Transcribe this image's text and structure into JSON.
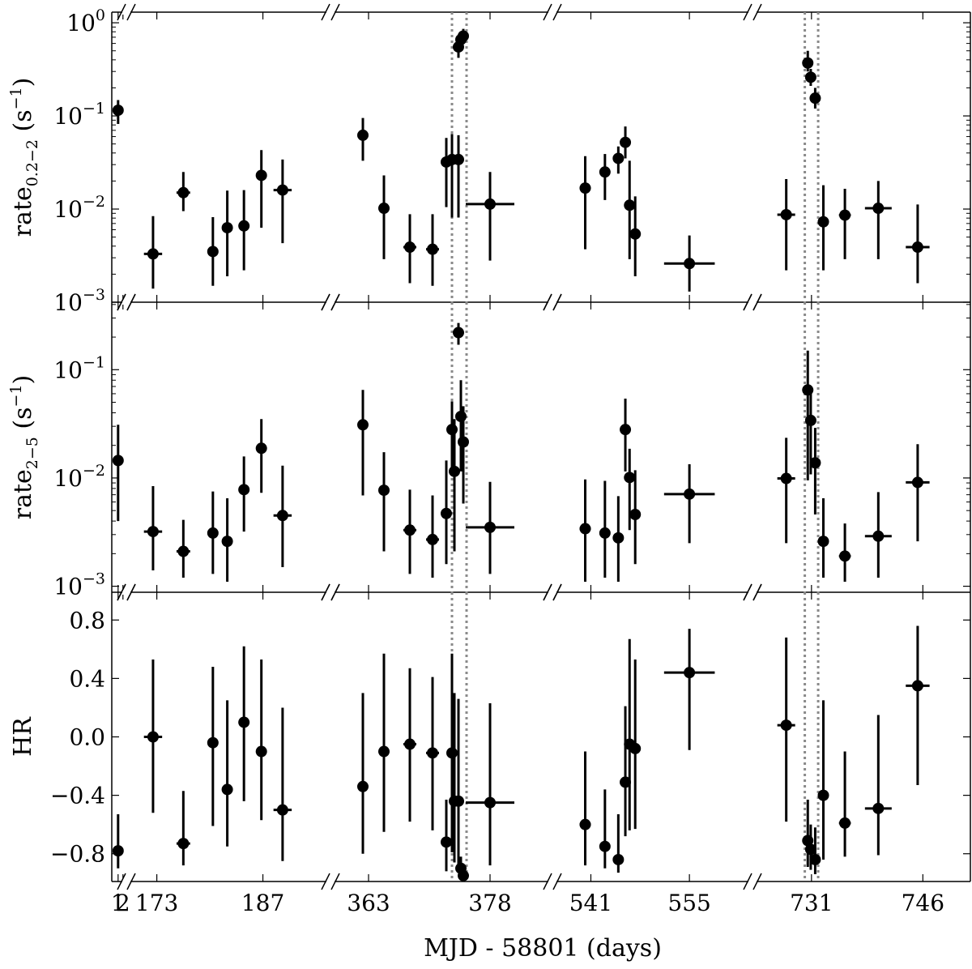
{
  "chart_data": {
    "type": "scatter",
    "title": "",
    "xlabel": "MJD - 58801 (days)",
    "x_segments": [
      {
        "range": [
          -0.3,
          2.2
        ],
        "ticks": [
          1,
          2
        ],
        "tick_labels": [
          "1",
          "2"
        ]
      },
      {
        "range": [
          169.3,
          195.6
        ],
        "ticks": [
          173,
          187
        ],
        "tick_labels": [
          "173",
          "187"
        ]
      },
      {
        "range": [
          358.6,
          385.3
        ],
        "ticks": [
          363,
          378
        ],
        "tick_labels": [
          "363",
          "378"
        ]
      },
      {
        "range": [
          536.0,
          563.5
        ],
        "ticks": [
          541,
          555
        ],
        "tick_labels": [
          "541",
          "555"
        ]
      },
      {
        "range": [
          723.6,
          752.4
        ],
        "ticks": [
          731,
          746
        ],
        "tick_labels": [
          "731",
          "746"
        ]
      }
    ],
    "vlines": [
      373.3,
      375.1,
      730.1,
      731.9
    ],
    "panels": [
      {
        "name": "soft-rate",
        "ylabel": "rate",
        "ylabel_sub": "0.2−2",
        "ylabel_unit": "(s",
        "ylabel_unit_sup": "−1",
        "ylabel_unit_end": ")",
        "scale": "log",
        "ylim": [
          0.001,
          1.3
        ],
        "yticks": [
          {
            "value": 0.001,
            "base": "10",
            "exp": "−3"
          },
          {
            "value": 0.01,
            "base": "10",
            "exp": "−2"
          },
          {
            "value": 0.1,
            "base": "10",
            "exp": "−1"
          },
          {
            "value": 1,
            "base": "10",
            "exp": "0"
          }
        ],
        "points": [
          {
            "x": 1.0,
            "y": 0.115,
            "xerr": 0,
            "ylo": 0.082,
            "yhi": 0.148
          },
          {
            "x": 172.5,
            "y": 0.0033,
            "xerr": 1.2,
            "ylo": 0.0014,
            "yhi": 0.0084
          },
          {
            "x": 176.5,
            "y": 0.015,
            "xerr": 0.9,
            "ylo": 0.0095,
            "yhi": 0.025
          },
          {
            "x": 180.4,
            "y": 0.0035,
            "xerr": 0.4,
            "ylo": 0.0015,
            "yhi": 0.0082
          },
          {
            "x": 182.3,
            "y": 0.0063,
            "xerr": 0.4,
            "ylo": 0.0019,
            "yhi": 0.0158
          },
          {
            "x": 184.5,
            "y": 0.0066,
            "xerr": 0.4,
            "ylo": 0.0022,
            "yhi": 0.016
          },
          {
            "x": 186.8,
            "y": 0.023,
            "xerr": 0,
            "ylo": 0.0063,
            "yhi": 0.043
          },
          {
            "x": 189.6,
            "y": 0.016,
            "xerr": 1.2,
            "ylo": 0.0043,
            "yhi": 0.034
          },
          {
            "x": 362.3,
            "y": 0.062,
            "xerr": 0.4,
            "ylo": 0.033,
            "yhi": 0.095
          },
          {
            "x": 364.9,
            "y": 0.0102,
            "xerr": 0.4,
            "ylo": 0.0029,
            "yhi": 0.023
          },
          {
            "x": 368.1,
            "y": 0.0039,
            "xerr": 0.8,
            "ylo": 0.0016,
            "yhi": 0.0088
          },
          {
            "x": 370.9,
            "y": 0.0037,
            "xerr": 0.8,
            "ylo": 0.0015,
            "yhi": 0.0088
          },
          {
            "x": 372.6,
            "y": 0.032,
            "xerr": 0,
            "ylo": 0.0105,
            "yhi": 0.058
          },
          {
            "x": 373.3,
            "y": 0.034,
            "xerr": 0,
            "ylo": 0.0081,
            "yhi": 0.064
          },
          {
            "x": 374.1,
            "y": 0.034,
            "xerr": 0,
            "ylo": 0.0081,
            "yhi": 0.062
          },
          {
            "x": 374.1,
            "y": 0.55,
            "xerr": 0,
            "ylo": 0.42,
            "yhi": 0.66
          },
          {
            "x": 374.4,
            "y": 0.66,
            "xerr": 0,
            "ylo": 0.54,
            "yhi": 0.8
          },
          {
            "x": 374.7,
            "y": 0.72,
            "xerr": 0,
            "ylo": 0.6,
            "yhi": 0.86
          },
          {
            "x": 378.0,
            "y": 0.0113,
            "xerr": 3.0,
            "ylo": 0.0028,
            "yhi": 0.025
          },
          {
            "x": 540.2,
            "y": 0.0168,
            "xerr": 0.8,
            "ylo": 0.0037,
            "yhi": 0.037
          },
          {
            "x": 543.0,
            "y": 0.025,
            "xerr": 0.4,
            "ylo": 0.0125,
            "yhi": 0.039
          },
          {
            "x": 544.9,
            "y": 0.035,
            "xerr": 0.4,
            "ylo": 0.024,
            "yhi": 0.047
          },
          {
            "x": 545.9,
            "y": 0.052,
            "xerr": 0.4,
            "ylo": 0.035,
            "yhi": 0.077
          },
          {
            "x": 546.5,
            "y": 0.011,
            "xerr": 0,
            "ylo": 0.0029,
            "yhi": 0.033
          },
          {
            "x": 547.3,
            "y": 0.0054,
            "xerr": 0.4,
            "ylo": 0.0019,
            "yhi": 0.0137
          },
          {
            "x": 555.0,
            "y": 0.0026,
            "xerr": 3.6,
            "ylo": 0.0013,
            "yhi": 0.0052
          },
          {
            "x": 727.6,
            "y": 0.0087,
            "xerr": 1.2,
            "ylo": 0.0022,
            "yhi": 0.021
          },
          {
            "x": 730.5,
            "y": 0.37,
            "xerr": 0,
            "ylo": 0.3,
            "yhi": 0.5
          },
          {
            "x": 730.9,
            "y": 0.26,
            "xerr": 0,
            "ylo": 0.21,
            "yhi": 0.32
          },
          {
            "x": 731.5,
            "y": 0.155,
            "xerr": 0,
            "ylo": 0.12,
            "yhi": 0.2
          },
          {
            "x": 732.6,
            "y": 0.0073,
            "xerr": 0.4,
            "ylo": 0.0022,
            "yhi": 0.018
          },
          {
            "x": 735.5,
            "y": 0.0086,
            "xerr": 0.8,
            "ylo": 0.0029,
            "yhi": 0.0165
          },
          {
            "x": 740.0,
            "y": 0.0102,
            "xerr": 1.8,
            "ylo": 0.0029,
            "yhi": 0.02
          },
          {
            "x": 745.3,
            "y": 0.0039,
            "xerr": 1.6,
            "ylo": 0.0016,
            "yhi": 0.0112
          }
        ]
      },
      {
        "name": "hard-rate",
        "ylabel": "rate",
        "ylabel_sub": "2−5",
        "ylabel_unit": "(s",
        "ylabel_unit_sup": "−1",
        "ylabel_unit_end": ")",
        "scale": "log",
        "ylim": [
          0.00088,
          0.42
        ],
        "yticks": [
          {
            "value": 0.001,
            "base": "10",
            "exp": "−3"
          },
          {
            "value": 0.01,
            "base": "10",
            "exp": "−2"
          },
          {
            "value": 0.1,
            "base": "10",
            "exp": "−1"
          }
        ],
        "points": [
          {
            "x": 1.0,
            "y": 0.0145,
            "xerr": 0,
            "ylo": 0.004,
            "yhi": 0.031
          },
          {
            "x": 172.5,
            "y": 0.0032,
            "xerr": 1.2,
            "ylo": 0.0014,
            "yhi": 0.0084
          },
          {
            "x": 176.5,
            "y": 0.0021,
            "xerr": 0.9,
            "ylo": 0.0012,
            "yhi": 0.0041
          },
          {
            "x": 180.4,
            "y": 0.0031,
            "xerr": 0.4,
            "ylo": 0.0013,
            "yhi": 0.0075
          },
          {
            "x": 182.3,
            "y": 0.0026,
            "xerr": 0.4,
            "ylo": 0.0011,
            "yhi": 0.0065
          },
          {
            "x": 184.5,
            "y": 0.0078,
            "xerr": 0.4,
            "ylo": 0.0032,
            "yhi": 0.0158
          },
          {
            "x": 186.8,
            "y": 0.0188,
            "xerr": 0,
            "ylo": 0.0073,
            "yhi": 0.035
          },
          {
            "x": 189.6,
            "y": 0.0045,
            "xerr": 1.2,
            "ylo": 0.0015,
            "yhi": 0.013
          },
          {
            "x": 362.3,
            "y": 0.031,
            "xerr": 0.4,
            "ylo": 0.0069,
            "yhi": 0.065
          },
          {
            "x": 364.9,
            "y": 0.0077,
            "xerr": 0.4,
            "ylo": 0.0021,
            "yhi": 0.0173
          },
          {
            "x": 368.1,
            "y": 0.0033,
            "xerr": 0.8,
            "ylo": 0.0013,
            "yhi": 0.0078
          },
          {
            "x": 370.9,
            "y": 0.0027,
            "xerr": 0.8,
            "ylo": 0.0012,
            "yhi": 0.0069
          },
          {
            "x": 372.6,
            "y": 0.0047,
            "xerr": 0,
            "ylo": 0.0016,
            "yhi": 0.0145
          },
          {
            "x": 373.3,
            "y": 0.028,
            "xerr": 0,
            "ylo": 0.0125,
            "yhi": 0.051
          },
          {
            "x": 373.6,
            "y": 0.0115,
            "xerr": 0,
            "ylo": 0.0021,
            "yhi": 0.035
          },
          {
            "x": 374.1,
            "y": 0.22,
            "xerr": 0,
            "ylo": 0.17,
            "yhi": 0.27
          },
          {
            "x": 374.4,
            "y": 0.037,
            "xerr": 0,
            "ylo": 0.0115,
            "yhi": 0.08
          },
          {
            "x": 374.7,
            "y": 0.0215,
            "xerr": 0,
            "ylo": 0.0058,
            "yhi": 0.046
          },
          {
            "x": 378.0,
            "y": 0.0035,
            "xerr": 3.0,
            "ylo": 0.0013,
            "yhi": 0.0092
          },
          {
            "x": 540.2,
            "y": 0.0034,
            "xerr": 0.8,
            "ylo": 0.0011,
            "yhi": 0.0097
          },
          {
            "x": 543.0,
            "y": 0.0031,
            "xerr": 0.4,
            "ylo": 0.0012,
            "yhi": 0.0094
          },
          {
            "x": 544.9,
            "y": 0.0028,
            "xerr": 0.4,
            "ylo": 0.0011,
            "yhi": 0.0068
          },
          {
            "x": 545.9,
            "y": 0.028,
            "xerr": 0,
            "ylo": 0.0115,
            "yhi": 0.054
          },
          {
            "x": 546.5,
            "y": 0.0101,
            "xerr": 0,
            "ylo": 0.0033,
            "yhi": 0.0186
          },
          {
            "x": 547.3,
            "y": 0.0046,
            "xerr": 0.4,
            "ylo": 0.0016,
            "yhi": 0.0118
          },
          {
            "x": 555.0,
            "y": 0.0071,
            "xerr": 3.6,
            "ylo": 0.0025,
            "yhi": 0.0134
          },
          {
            "x": 727.6,
            "y": 0.0099,
            "xerr": 1.2,
            "ylo": 0.0025,
            "yhi": 0.0235
          },
          {
            "x": 730.5,
            "y": 0.065,
            "xerr": 0,
            "ylo": 0.0095,
            "yhi": 0.15
          },
          {
            "x": 730.9,
            "y": 0.034,
            "xerr": 0,
            "ylo": 0.0108,
            "yhi": 0.065
          },
          {
            "x": 731.5,
            "y": 0.0138,
            "xerr": 0,
            "ylo": 0.0046,
            "yhi": 0.029
          },
          {
            "x": 732.6,
            "y": 0.0026,
            "xerr": 0.4,
            "ylo": 0.0012,
            "yhi": 0.0065
          },
          {
            "x": 735.5,
            "y": 0.0019,
            "xerr": 0.8,
            "ylo": 0.0011,
            "yhi": 0.0038
          },
          {
            "x": 740.0,
            "y": 0.0029,
            "xerr": 1.8,
            "ylo": 0.0012,
            "yhi": 0.0074
          },
          {
            "x": 745.3,
            "y": 0.0091,
            "xerr": 1.6,
            "ylo": 0.0026,
            "yhi": 0.0205
          }
        ]
      },
      {
        "name": "hardness-ratio",
        "ylabel": "HR",
        "ylabel_sub": "",
        "ylabel_unit": "",
        "ylabel_unit_sup": "",
        "ylabel_unit_end": "",
        "scale": "linear",
        "ylim": [
          -0.99,
          0.99
        ],
        "yticks": [
          {
            "value": -0.8,
            "label": "−0.8"
          },
          {
            "value": -0.4,
            "label": "−0.4"
          },
          {
            "value": 0.0,
            "label": "0.0"
          },
          {
            "value": 0.4,
            "label": "0.4"
          },
          {
            "value": 0.8,
            "label": "0.8"
          }
        ],
        "points": [
          {
            "x": 1.0,
            "y": -0.78,
            "xerr": 0,
            "ylo": -0.9,
            "yhi": -0.53
          },
          {
            "x": 172.5,
            "y": 0.0,
            "xerr": 1.2,
            "ylo": -0.52,
            "yhi": 0.53
          },
          {
            "x": 176.5,
            "y": -0.73,
            "xerr": 0.9,
            "ylo": -0.88,
            "yhi": -0.37
          },
          {
            "x": 180.4,
            "y": -0.04,
            "xerr": 0.4,
            "ylo": -0.61,
            "yhi": 0.48
          },
          {
            "x": 182.3,
            "y": -0.36,
            "xerr": 0.4,
            "ylo": -0.75,
            "yhi": 0.25
          },
          {
            "x": 184.5,
            "y": 0.1,
            "xerr": 0.4,
            "ylo": -0.44,
            "yhi": 0.62
          },
          {
            "x": 186.8,
            "y": -0.1,
            "xerr": 0,
            "ylo": -0.57,
            "yhi": 0.53
          },
          {
            "x": 189.6,
            "y": -0.5,
            "xerr": 1.2,
            "ylo": -0.85,
            "yhi": 0.2
          },
          {
            "x": 362.3,
            "y": -0.34,
            "xerr": 0.4,
            "ylo": -0.8,
            "yhi": 0.3
          },
          {
            "x": 364.9,
            "y": -0.1,
            "xerr": 0.4,
            "ylo": -0.65,
            "yhi": 0.57
          },
          {
            "x": 368.1,
            "y": -0.05,
            "xerr": 0.8,
            "ylo": -0.58,
            "yhi": 0.47
          },
          {
            "x": 370.9,
            "y": -0.11,
            "xerr": 0.8,
            "ylo": -0.64,
            "yhi": 0.41
          },
          {
            "x": 372.6,
            "y": -0.72,
            "xerr": 0,
            "ylo": -0.92,
            "yhi": -0.43
          },
          {
            "x": 373.3,
            "y": -0.11,
            "xerr": 0,
            "ylo": -0.79,
            "yhi": 0.57
          },
          {
            "x": 373.6,
            "y": -0.44,
            "xerr": 0,
            "ylo": -0.86,
            "yhi": 0.3
          },
          {
            "x": 374.1,
            "y": -0.44,
            "xerr": 0,
            "ylo": -0.9,
            "yhi": 0.26
          },
          {
            "x": 374.4,
            "y": -0.9,
            "xerr": 0,
            "ylo": -0.96,
            "yhi": -0.82
          },
          {
            "x": 374.7,
            "y": -0.95,
            "xerr": 0,
            "ylo": -0.99,
            "yhi": -0.9
          },
          {
            "x": 378.0,
            "y": -0.45,
            "xerr": 3.0,
            "ylo": -0.88,
            "yhi": 0.23
          },
          {
            "x": 540.2,
            "y": -0.6,
            "xerr": 0.8,
            "ylo": -0.88,
            "yhi": -0.1
          },
          {
            "x": 543.0,
            "y": -0.75,
            "xerr": 0.4,
            "ylo": -0.9,
            "yhi": -0.36
          },
          {
            "x": 544.9,
            "y": -0.84,
            "xerr": 0,
            "ylo": -0.93,
            "yhi": -0.53
          },
          {
            "x": 545.9,
            "y": -0.31,
            "xerr": 0,
            "ylo": -0.68,
            "yhi": 0.21
          },
          {
            "x": 546.5,
            "y": -0.05,
            "xerr": 0,
            "ylo": -0.64,
            "yhi": 0.67
          },
          {
            "x": 547.3,
            "y": -0.08,
            "xerr": 0.4,
            "ylo": -0.63,
            "yhi": 0.53
          },
          {
            "x": 555.0,
            "y": 0.44,
            "xerr": 3.6,
            "ylo": -0.09,
            "yhi": 0.74
          },
          {
            "x": 727.6,
            "y": 0.08,
            "xerr": 1.2,
            "ylo": -0.58,
            "yhi": 0.68
          },
          {
            "x": 730.5,
            "y": -0.71,
            "xerr": 0,
            "ylo": -0.89,
            "yhi": -0.43
          },
          {
            "x": 730.9,
            "y": -0.77,
            "xerr": 0,
            "ylo": -0.91,
            "yhi": -0.6
          },
          {
            "x": 731.5,
            "y": -0.84,
            "xerr": 0,
            "ylo": -0.94,
            "yhi": -0.62
          },
          {
            "x": 732.6,
            "y": -0.4,
            "xerr": 0.4,
            "ylo": -0.84,
            "yhi": 0.25
          },
          {
            "x": 735.5,
            "y": -0.59,
            "xerr": 0.8,
            "ylo": -0.82,
            "yhi": -0.1
          },
          {
            "x": 740.0,
            "y": -0.49,
            "xerr": 1.8,
            "ylo": -0.81,
            "yhi": 0.15
          },
          {
            "x": 745.3,
            "y": 0.35,
            "xerr": 1.6,
            "ylo": -0.33,
            "yhi": 0.76
          }
        ]
      }
    ]
  }
}
